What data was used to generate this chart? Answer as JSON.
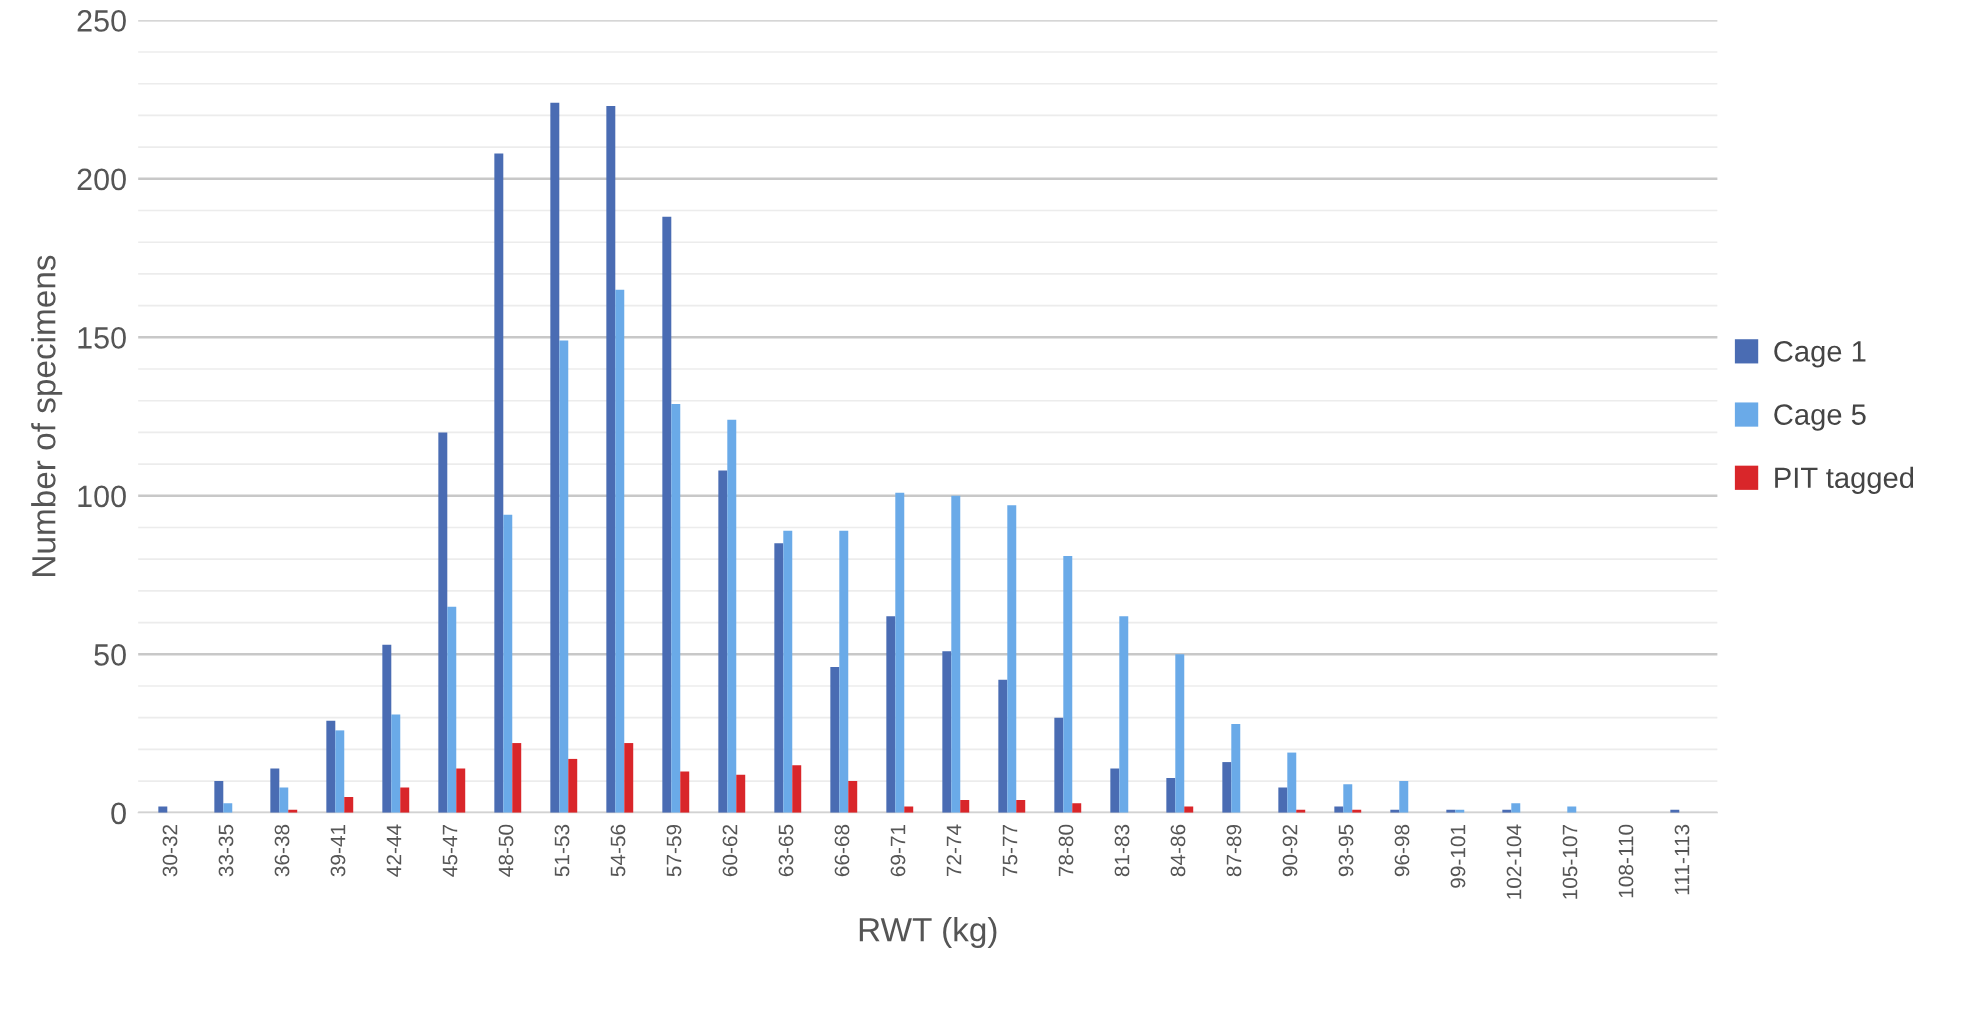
{
  "chart_data": {
    "type": "bar",
    "xlabel": "RWT (kg)",
    "ylabel": "Number of specimens",
    "categories": [
      "30-32",
      "33-35",
      "36-38",
      "39-41",
      "42-44",
      "45-47",
      "48-50",
      "51-53",
      "54-56",
      "57-59",
      "60-62",
      "63-65",
      "66-68",
      "69-71",
      "72-74",
      "75-77",
      "78-80",
      "81-83",
      "84-86",
      "87-89",
      "90-92",
      "93-95",
      "96-98",
      "99-101",
      "102-104",
      "105-107",
      "108-110",
      "111-113"
    ],
    "series": [
      {
        "name": "Cage 1",
        "color": "#4a6cb3",
        "values": [
          2,
          10,
          14,
          29,
          53,
          120,
          208,
          224,
          223,
          188,
          108,
          85,
          46,
          62,
          51,
          42,
          30,
          14,
          11,
          16,
          8,
          2,
          1,
          1,
          1,
          0,
          0,
          1
        ]
      },
      {
        "name": "Cage 5",
        "color": "#6aaae8",
        "values": [
          0,
          3,
          8,
          26,
          31,
          65,
          94,
          149,
          165,
          129,
          124,
          89,
          89,
          101,
          100,
          97,
          81,
          62,
          50,
          28,
          19,
          9,
          10,
          1,
          3,
          2,
          0,
          0
        ]
      },
      {
        "name": "PIT tagged",
        "color": "#d9262a",
        "values": [
          0,
          0,
          1,
          5,
          8,
          14,
          22,
          17,
          22,
          13,
          12,
          15,
          10,
          2,
          4,
          4,
          3,
          0,
          2,
          0,
          1,
          1,
          0,
          0,
          0,
          0,
          0,
          0
        ]
      }
    ],
    "ylim": [
      0,
      250
    ],
    "yticks": [
      0,
      {
        "value": 10,
        "label": null
      },
      {
        "value": 20,
        "label": null
      },
      {
        "value": 30,
        "label": null
      },
      {
        "value": 40,
        "label": null
      },
      50,
      {
        "value": 60,
        "label": null
      },
      {
        "value": 70,
        "label": null
      },
      {
        "value": 80,
        "label": null
      },
      {
        "value": 90,
        "label": null
      },
      100,
      {
        "value": 110,
        "label": null
      },
      {
        "value": 120,
        "label": null
      },
      {
        "value": 130,
        "label": null
      },
      {
        "value": 140,
        "label": null
      },
      150,
      {
        "value": 160,
        "label": null
      },
      {
        "value": 170,
        "label": null
      },
      {
        "value": 180,
        "label": null
      },
      {
        "value": 190,
        "label": null
      },
      200,
      {
        "value": 210,
        "label": null
      },
      {
        "value": 220,
        "label": null
      },
      {
        "value": 230,
        "label": null
      },
      {
        "value": 240,
        "label": null
      },
      250
    ],
    "grid": "y",
    "legend": "right"
  }
}
